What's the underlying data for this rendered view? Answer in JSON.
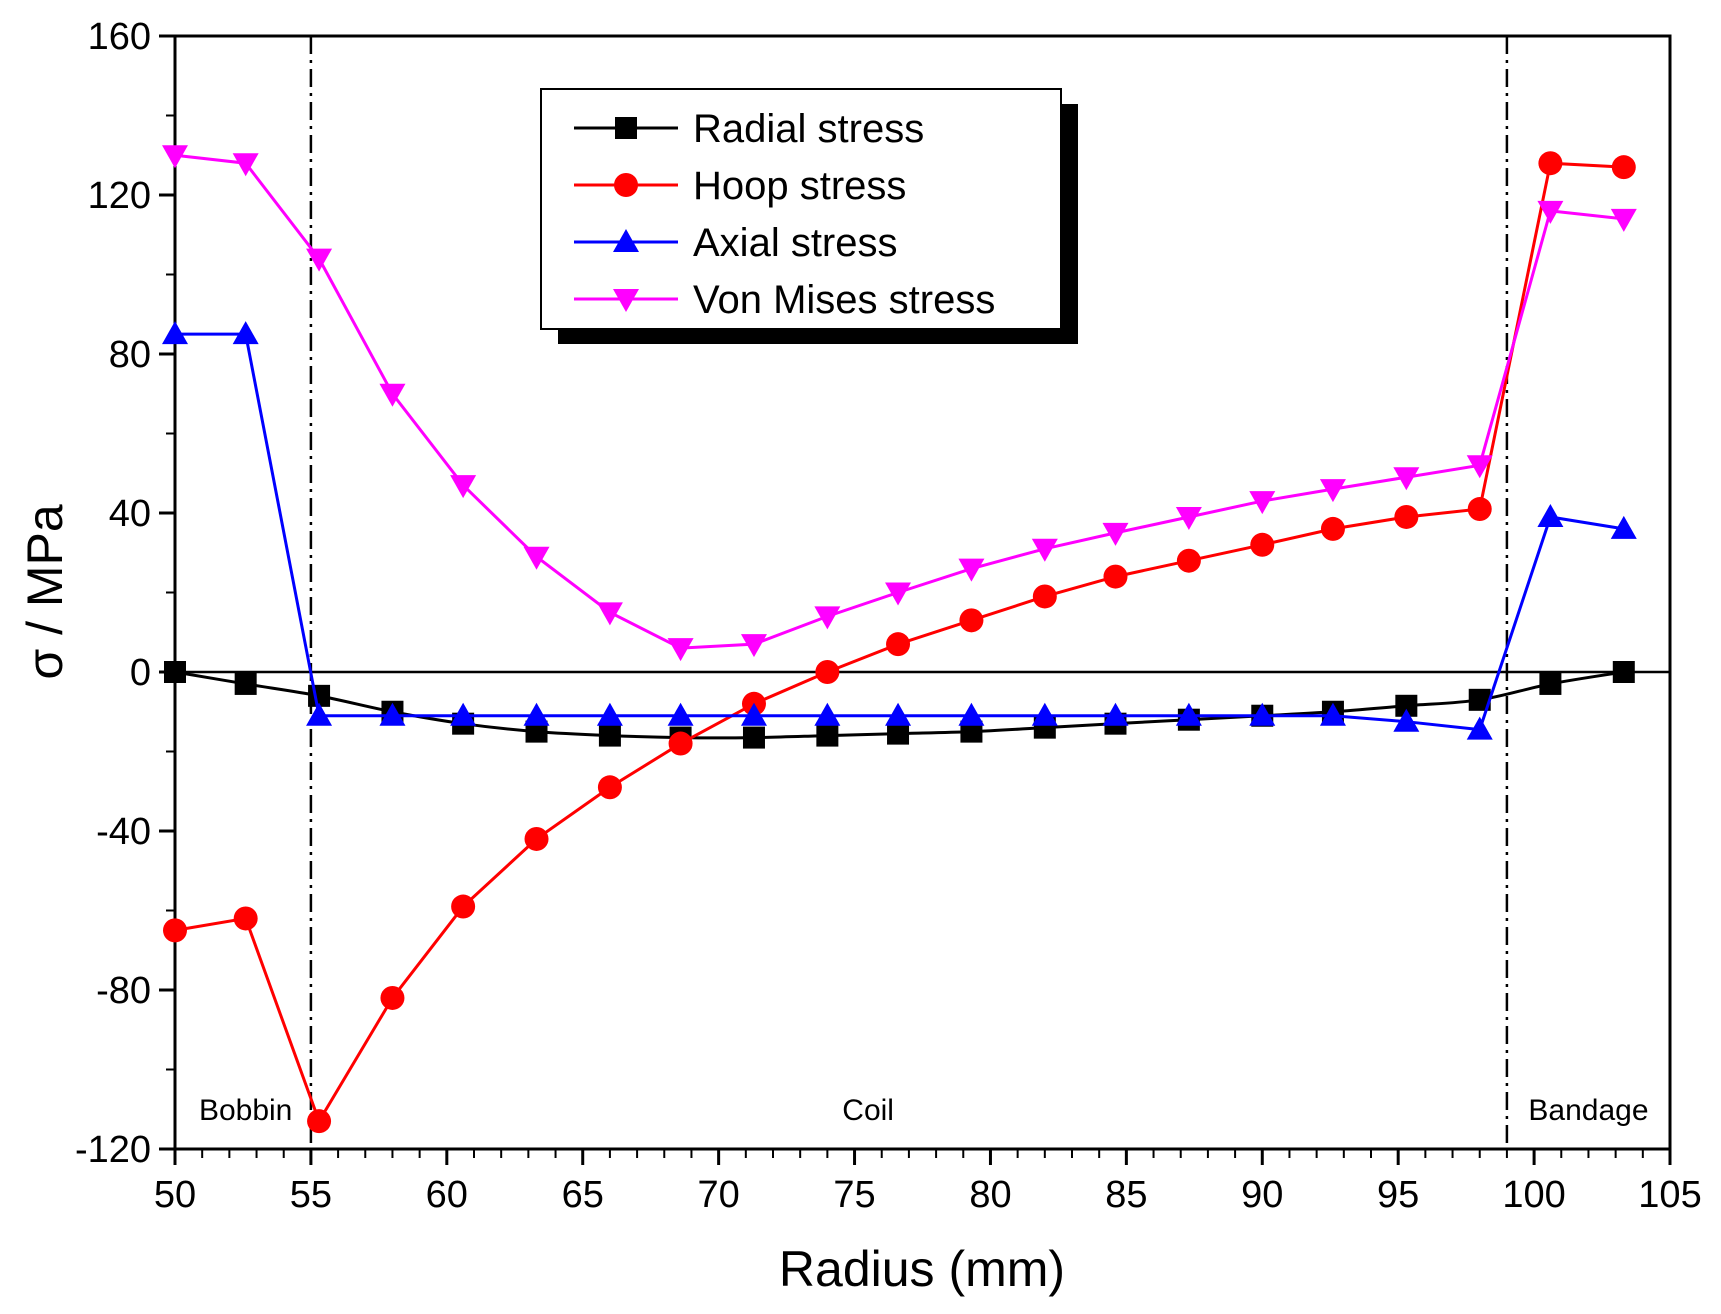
{
  "chart_data": {
    "type": "line",
    "xlabel": "Radius (mm)",
    "ylabel": "σ / MPa",
    "xlim": [
      50,
      105
    ],
    "ylim": [
      -120,
      160
    ],
    "xticks": [
      "50",
      "55",
      "60",
      "65",
      "70",
      "75",
      "80",
      "85",
      "90",
      "95",
      "100",
      "105"
    ],
    "yticks": [
      "-120",
      "-80",
      "-40",
      "0",
      "40",
      "80",
      "120",
      "160"
    ],
    "zero_line": true,
    "region_boundaries": [
      55,
      99
    ],
    "regions": [
      {
        "label": "Bobbin",
        "x": 52.6
      },
      {
        "label": "Coil",
        "x": 75.5
      },
      {
        "label": "Bandage",
        "x": 102.0
      }
    ],
    "legend_position": "top-center",
    "x": [
      50,
      52.6,
      55.3,
      58,
      60.6,
      63.3,
      66,
      68.6,
      71.3,
      74,
      76.6,
      79.3,
      82,
      84.6,
      87.3,
      90,
      92.6,
      95.3,
      98,
      100.6,
      103.3
    ],
    "series": [
      {
        "name": "Radial stress",
        "color": "#000000",
        "marker": "square",
        "curve": "smooth",
        "values": [
          0,
          -3,
          -6,
          -10,
          -13,
          -15,
          -16,
          -16.5,
          -16.5,
          -16,
          -15.5,
          -15,
          -14,
          -13,
          -12,
          -11,
          -10,
          -8.5,
          -7,
          -3,
          0
        ]
      },
      {
        "name": "Hoop stress",
        "color": "#ff0000",
        "marker": "circle",
        "curve": "linear",
        "values": [
          -65,
          -62,
          -113,
          -82,
          -59,
          -42,
          -29,
          -18,
          -8,
          0,
          7,
          13,
          19,
          24,
          28,
          32,
          36,
          39,
          41,
          128,
          127
        ]
      },
      {
        "name": "Axial stress",
        "color": "#0000ff",
        "marker": "triangle-up",
        "curve": "linear",
        "values": [
          85,
          85,
          -11,
          -11,
          -11,
          -11,
          -11,
          -11,
          -11,
          -11,
          -11,
          -11,
          -11,
          -11,
          -11,
          -11,
          -11,
          -12.5,
          -14.5,
          39,
          36
        ]
      },
      {
        "name": "Von Mises stress",
        "color": "#ff00ff",
        "marker": "triangle-down",
        "curve": "linear",
        "values": [
          130,
          128,
          104,
          70,
          47,
          29,
          15,
          6,
          7,
          14,
          20,
          26,
          31,
          35,
          39,
          43,
          46,
          49,
          52,
          116,
          114
        ]
      }
    ]
  }
}
